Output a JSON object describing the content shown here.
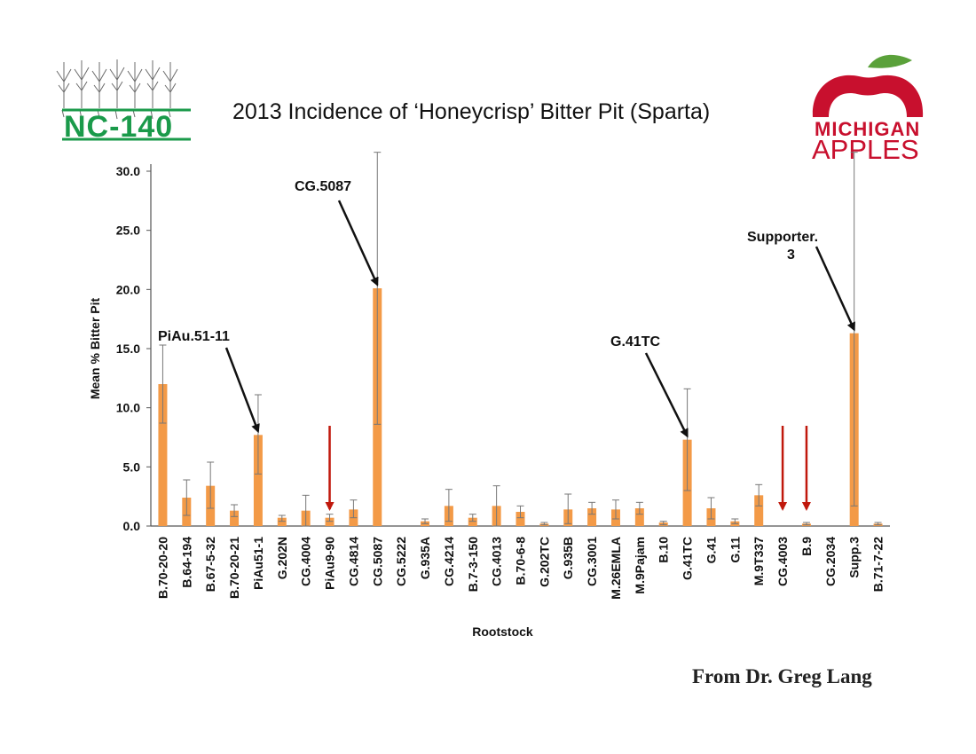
{
  "slide": {
    "title": "2013 Incidence of ‘Honeycrisp’ Bitter Pit (Sparta)",
    "credit": "From Dr. Greg Lang",
    "logo_left_text": "NC-140",
    "logo_right_line1": "MICHIGAN",
    "logo_right_line2": "APPLES"
  },
  "chart_data": {
    "type": "bar",
    "xlabel": "Rootstock",
    "ylabel": "Mean % Bitter Pit",
    "ylim": [
      0,
      30
    ],
    "yticks": [
      "0.0",
      "5.0",
      "10.0",
      "15.0",
      "20.0",
      "25.0",
      "30.0"
    ],
    "bar_color": "#f39a47",
    "error_bar_color": "#777777",
    "categories": [
      "B.70-20-20",
      "B.64-194",
      "B.67-5-32",
      "B.70-20-21",
      "PiAu51-1",
      "G.202N",
      "CG.4004",
      "PiAu9-90",
      "CG.4814",
      "CG.5087",
      "CG.5222",
      "G.935A",
      "CG.4214",
      "B.7-3-150",
      "CG.4013",
      "B.70-6-8",
      "G.202TC",
      "G.935B",
      "CG.3001",
      "M.26EMLA",
      "M.9Pajam",
      "B.10",
      "G.41TC",
      "G.41",
      "G.11",
      "M.9T337",
      "CG.4003",
      "B.9",
      "CG.2034",
      "Supp.3",
      "B.71-7-22"
    ],
    "values": [
      12.0,
      2.4,
      3.4,
      1.3,
      7.7,
      0.7,
      1.3,
      0.7,
      1.4,
      20.1,
      0.0,
      0.4,
      1.7,
      0.7,
      1.7,
      1.2,
      0.2,
      1.4,
      1.5,
      1.4,
      1.5,
      0.3,
      7.3,
      1.5,
      0.4,
      2.6,
      0.0,
      0.2,
      0.0,
      16.3,
      0.2
    ],
    "err_low": [
      8.7,
      0.9,
      1.5,
      0.8,
      4.4,
      0.4,
      0.0,
      0.4,
      0.7,
      8.6,
      0.0,
      0.2,
      0.4,
      0.4,
      0.0,
      0.7,
      0.1,
      0.2,
      1.0,
      0.6,
      1.0,
      0.1,
      3.0,
      0.6,
      0.2,
      1.7,
      0.0,
      0.1,
      0.0,
      1.7,
      0.1
    ],
    "err_high": [
      15.3,
      3.9,
      5.4,
      1.8,
      11.1,
      0.9,
      2.6,
      1.0,
      2.2,
      31.6,
      0.0,
      0.6,
      3.1,
      1.0,
      3.4,
      1.7,
      0.3,
      2.7,
      2.0,
      2.2,
      2.0,
      0.4,
      11.6,
      2.4,
      0.6,
      3.5,
      0.0,
      0.3,
      0.0,
      31.6,
      0.3
    ],
    "annotations": [
      {
        "text": "PiAu.51-11",
        "category": "PiAu51-1",
        "arrow_color": "#111111"
      },
      {
        "text": "CG.5087",
        "category": "CG.5087",
        "arrow_color": "#111111"
      },
      {
        "text": "G.41TC",
        "category": "G.41TC",
        "arrow_color": "#111111"
      },
      {
        "text": "Supporter.",
        "text2": "3",
        "category": "Supp.3",
        "arrow_color": "#111111"
      }
    ],
    "red_arrows": [
      "PiAu9-90",
      "CG.4003",
      "B.9"
    ],
    "red_arrow_color": "#c0180c",
    "grid": false,
    "legend": "none"
  }
}
